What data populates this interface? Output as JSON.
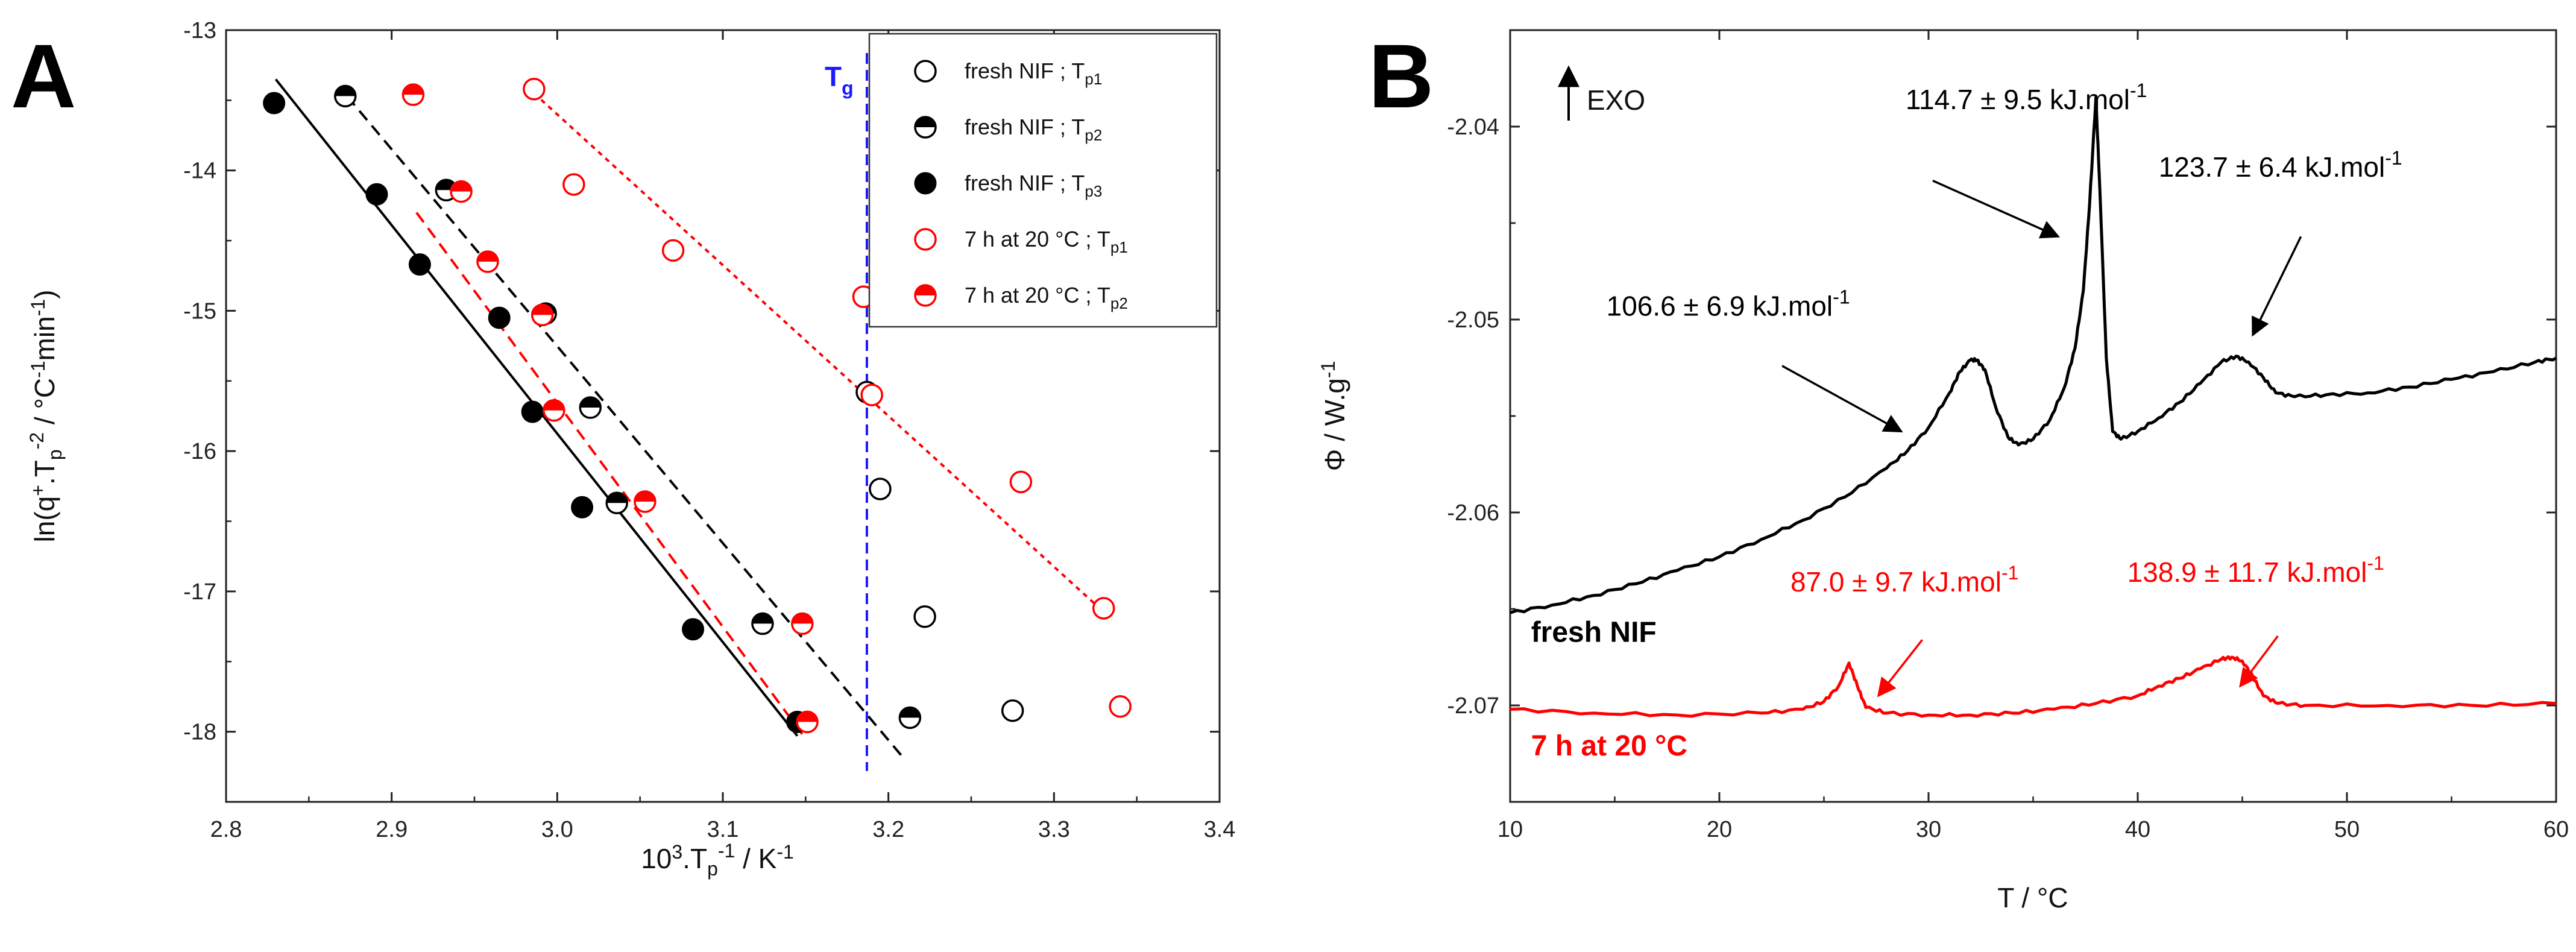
{
  "chart_data": [
    {
      "panel_label": "A",
      "type": "scatter",
      "xlabel": "10³.Tₚ⁻¹ / K⁻¹",
      "ylabel": "ln(q⁺.Tₚ⁻² / °C⁻¹min⁻¹)",
      "xlim": [
        2.8,
        3.4
      ],
      "ylim": [
        -18.5,
        -13
      ],
      "xticks": [
        "2.8",
        "2.9",
        "3.0",
        "3.1",
        "3.2",
        "3.3",
        "3.4"
      ],
      "yticks": [
        "-13",
        "-14",
        "-15",
        "-16",
        "-17",
        "-18"
      ],
      "tg": {
        "label": "T",
        "sub": "g",
        "x": 3.187,
        "color": "#1a1aff"
      },
      "series": [
        {
          "name": "fresh NIF ; Tp1",
          "legend_main": "fresh NIF ; T",
          "legend_sub": "p1",
          "marker": "open",
          "color": "#000000",
          "x": [
            3.187,
            3.195,
            3.222,
            3.275
          ],
          "y": [
            -15.58,
            -16.27,
            -17.18,
            -17.85
          ]
        },
        {
          "name": "fresh NIF ; Tp2",
          "legend_main": "fresh NIF ; T",
          "legend_sub": "p2",
          "marker": "half",
          "color": "#000000",
          "x": [
            2.872,
            2.933,
            2.993,
            3.02,
            3.036,
            3.124,
            3.213
          ],
          "y": [
            -13.47,
            -14.14,
            -15.02,
            -15.69,
            -16.37,
            -17.23,
            -17.9
          ],
          "fit": {
            "x": [
              2.873,
              3.21
            ],
            "y": [
              -13.47,
              -18.2
            ],
            "style": "dashed",
            "color": "#000000"
          }
        },
        {
          "name": "fresh NIF ; Tp3",
          "legend_main": "fresh NIF ; T",
          "legend_sub": "p3",
          "marker": "filled",
          "color": "#000000",
          "x": [
            2.829,
            2.891,
            2.917,
            2.965,
            2.985,
            3.015,
            3.082,
            3.145
          ],
          "y": [
            -13.52,
            -14.17,
            -14.67,
            -15.05,
            -15.72,
            -16.4,
            -17.27,
            -17.93
          ],
          "fit": {
            "x": [
              2.83,
              3.145
            ],
            "y": [
              -13.35,
              -18.03
            ],
            "style": "solid",
            "color": "#000000"
          }
        },
        {
          "name": "7 h at 20 °C ; Tp1",
          "legend_main": "7 h at 20 °C ; T",
          "legend_sub": "p1",
          "marker": "open",
          "color": "#ff0000",
          "x": [
            2.986,
            3.01,
            3.07,
            3.185,
            3.19,
            3.28,
            3.33,
            3.34
          ],
          "y": [
            -13.42,
            -14.1,
            -14.57,
            -14.9,
            -15.6,
            -16.22,
            -17.12,
            -17.82
          ],
          "fit": {
            "x": [
              2.986,
              3.335
            ],
            "y": [
              -13.45,
              -17.2
            ],
            "style": "dotted",
            "color": "#ff0000"
          }
        },
        {
          "name": "7 h at 20 °C ; Tp2",
          "legend_main": "7 h at 20 °C ; T",
          "legend_sub": "p2",
          "marker": "half",
          "color": "#ff0000",
          "x": [
            2.913,
            2.942,
            2.958,
            2.991,
            2.998,
            3.053,
            3.148,
            3.151
          ],
          "y": [
            -13.46,
            -14.15,
            -14.65,
            -15.03,
            -15.71,
            -16.36,
            -17.23,
            -17.93
          ],
          "fit": {
            "x": [
              2.915,
              3.15
            ],
            "y": [
              -14.3,
              -18.05
            ],
            "style": "dashed",
            "color": "#ff0000"
          }
        }
      ]
    },
    {
      "panel_label": "B",
      "type": "line",
      "xlabel": "T / °C",
      "ylabel": "Φ / W.g⁻¹",
      "xlim": [
        10,
        60
      ],
      "ylim": [
        -2.075,
        -2.035
      ],
      "xticks": [
        "10",
        "20",
        "30",
        "40",
        "50",
        "60"
      ],
      "yticks": [
        "-2.04",
        "-2.05",
        "-2.06",
        "-2.07"
      ],
      "exo_label": "EXO",
      "series": [
        {
          "name": "fresh NIF",
          "color": "#000000",
          "x": [
            10,
            12,
            14,
            16,
            18,
            20,
            22,
            24,
            26,
            28,
            29,
            30,
            31,
            31.5,
            32,
            32.3,
            32.7,
            33.2,
            33.8,
            34.3,
            35,
            35.8,
            36.5,
            37,
            37.4,
            37.7,
            38,
            38.2,
            38.5,
            38.8,
            39.2,
            40,
            41,
            42,
            43,
            44,
            44.7,
            45.3,
            46,
            46.6,
            47.5,
            49,
            51,
            53,
            55,
            57,
            59,
            60
          ],
          "y": [
            -2.0652,
            -2.0648,
            -2.0643,
            -2.0637,
            -2.063,
            -2.0623,
            -2.0614,
            -2.0604,
            -2.0592,
            -2.0577,
            -2.0568,
            -2.0556,
            -2.0538,
            -2.0527,
            -2.0521,
            -2.0521,
            -2.0526,
            -2.0545,
            -2.0561,
            -2.0565,
            -2.0562,
            -2.0552,
            -2.0535,
            -2.0515,
            -2.0485,
            -2.044,
            -2.0385,
            -2.0435,
            -2.052,
            -2.0558,
            -2.0562,
            -2.0558,
            -2.0551,
            -2.0543,
            -2.0533,
            -2.0522,
            -2.0519,
            -2.0522,
            -2.053,
            -2.0538,
            -2.054,
            -2.0539,
            -2.0538,
            -2.0535,
            -2.0531,
            -2.0527,
            -2.0522,
            -2.052
          ]
        },
        {
          "name": "7 h at 20 °C",
          "color": "#ff0000",
          "x": [
            10,
            14,
            18,
            22,
            24,
            25,
            25.7,
            26.2,
            26.6,
            27,
            28,
            30,
            32,
            34,
            36,
            38,
            40,
            41,
            42,
            43,
            44,
            44.5,
            45,
            45.5,
            46,
            46.7,
            48,
            52,
            56,
            60
          ],
          "y": [
            -2.0702,
            -2.0704,
            -2.0705,
            -2.0704,
            -2.0702,
            -2.0698,
            -2.069,
            -2.0678,
            -2.069,
            -2.0701,
            -2.0704,
            -2.0705,
            -2.0705,
            -2.0704,
            -2.0702,
            -2.0699,
            -2.0695,
            -2.069,
            -2.0686,
            -2.0681,
            -2.0676,
            -2.0675,
            -2.0677,
            -2.0685,
            -2.0695,
            -2.0699,
            -2.07,
            -2.07,
            -2.07,
            -2.0699
          ]
        }
      ],
      "annotations": [
        {
          "text": "114.7 ± 9.5 kJ.mol",
          "sup": "-1",
          "color": "#000000",
          "x": 28.9,
          "y": -2.0391,
          "arrow_from": [
            30.2,
            -2.0428
          ],
          "arrow_to": [
            36.2,
            -2.0457
          ]
        },
        {
          "text": "123.7 ± 6.4 kJ.mol",
          "sup": "-1",
          "color": "#000000",
          "x": 41.0,
          "y": -2.0426,
          "arrow_from": [
            47.8,
            -2.0457
          ],
          "arrow_to": [
            45.5,
            -2.0508
          ]
        },
        {
          "text": "106.6 ± 6.9 kJ.mol",
          "sup": "-1",
          "color": "#000000",
          "x": 14.6,
          "y": -2.0498,
          "arrow_from": [
            23.0,
            -2.0524
          ],
          "arrow_to": [
            28.7,
            -2.0558
          ]
        },
        {
          "text": "87.0 ± 9.7 kJ.mol",
          "sup": "-1",
          "color": "#ff0000",
          "x": 23.4,
          "y": -2.0641,
          "arrow_from": [
            29.7,
            -2.0666
          ],
          "arrow_to": [
            27.6,
            -2.0695
          ]
        },
        {
          "text": "138.9 ± 11.7 kJ.mol",
          "sup": "-1",
          "color": "#ff0000",
          "x": 39.5,
          "y": -2.0636,
          "arrow_from": [
            46.7,
            -2.0664
          ],
          "arrow_to": [
            44.9,
            -2.069
          ]
        }
      ],
      "curve_labels": [
        {
          "text": "fresh NIF",
          "color": "#000000",
          "x": 11.0,
          "y": -2.0667
        },
        {
          "text": "7 h at 20 °C",
          "color": "#ff0000",
          "x": 11.0,
          "y": -2.0726
        }
      ]
    }
  ]
}
